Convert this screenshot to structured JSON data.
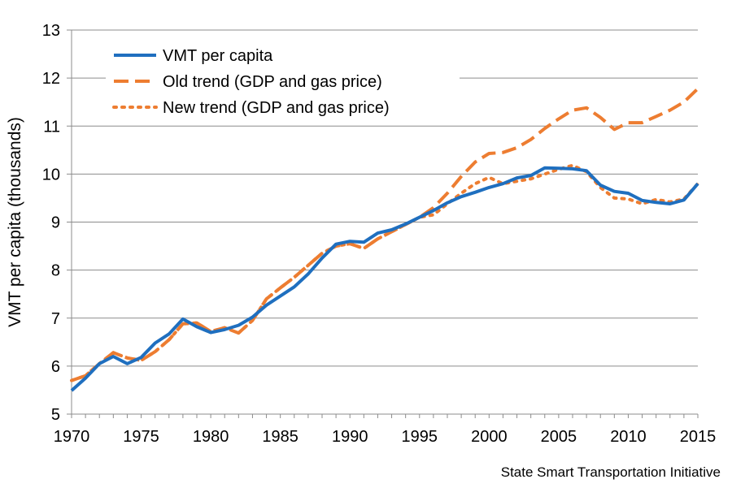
{
  "credit": "State Smart Transportation Initiative",
  "chart_data": {
    "type": "line",
    "title": "",
    "xlabel": "",
    "ylabel": "VMT per capita (thousands)",
    "xlim": [
      1970,
      2015
    ],
    "ylim": [
      5,
      13
    ],
    "x_ticks": [
      1970,
      1975,
      1980,
      1985,
      1990,
      1995,
      2000,
      2005,
      2010,
      2015
    ],
    "y_ticks": [
      5,
      6,
      7,
      8,
      9,
      10,
      11,
      12,
      13
    ],
    "grid": "horizontal",
    "legend_position": "top-left",
    "x": [
      1970,
      1971,
      1972,
      1973,
      1974,
      1975,
      1976,
      1977,
      1978,
      1979,
      1980,
      1981,
      1982,
      1983,
      1984,
      1985,
      1986,
      1987,
      1988,
      1989,
      1990,
      1991,
      1992,
      1993,
      1994,
      1995,
      1996,
      1997,
      1998,
      1999,
      2000,
      2001,
      2002,
      2003,
      2004,
      2005,
      2006,
      2007,
      2008,
      2009,
      2010,
      2011,
      2012,
      2013,
      2014,
      2015
    ],
    "series": [
      {
        "name": "VMT per capita",
        "style": "solid",
        "color": "#1f6fbf",
        "values": [
          5.49,
          5.75,
          6.05,
          6.2,
          6.05,
          6.18,
          6.48,
          6.67,
          6.98,
          6.82,
          6.7,
          6.76,
          6.85,
          7.02,
          7.27,
          7.46,
          7.65,
          7.92,
          8.25,
          8.54,
          8.6,
          8.58,
          8.77,
          8.84,
          8.96,
          9.1,
          9.24,
          9.4,
          9.53,
          9.62,
          9.72,
          9.8,
          9.92,
          9.97,
          10.13,
          10.12,
          10.11,
          10.07,
          9.77,
          9.64,
          9.6,
          9.45,
          9.41,
          9.38,
          9.46,
          9.8
        ]
      },
      {
        "name": "Old trend (GDP and gas price)",
        "style": "dashed",
        "color": "#ed7d31",
        "values": [
          5.7,
          5.8,
          6.05,
          6.28,
          6.17,
          6.12,
          6.3,
          6.55,
          6.88,
          6.9,
          6.72,
          6.8,
          6.69,
          6.95,
          7.4,
          7.63,
          7.85,
          8.1,
          8.35,
          8.5,
          8.55,
          8.45,
          8.65,
          8.8,
          8.95,
          9.1,
          9.3,
          9.6,
          9.95,
          10.25,
          10.43,
          10.45,
          10.55,
          10.72,
          10.95,
          11.15,
          11.33,
          11.38,
          11.18,
          10.93,
          11.07,
          11.07,
          11.2,
          11.33,
          11.5,
          11.78
        ]
      },
      {
        "name": "New trend (GDP and gas price)",
        "style": "dotted",
        "color": "#ed7d31",
        "values": [
          5.7,
          5.8,
          6.05,
          6.28,
          6.17,
          6.12,
          6.3,
          6.55,
          6.88,
          6.9,
          6.72,
          6.8,
          6.69,
          6.95,
          7.4,
          7.63,
          7.85,
          8.1,
          8.35,
          8.5,
          8.55,
          8.45,
          8.65,
          8.8,
          8.95,
          9.1,
          9.15,
          9.38,
          9.6,
          9.8,
          9.93,
          9.8,
          9.85,
          9.9,
          10.0,
          10.1,
          10.18,
          10.05,
          9.72,
          9.5,
          9.48,
          9.38,
          9.47,
          9.42,
          9.48,
          9.8
        ]
      }
    ]
  }
}
